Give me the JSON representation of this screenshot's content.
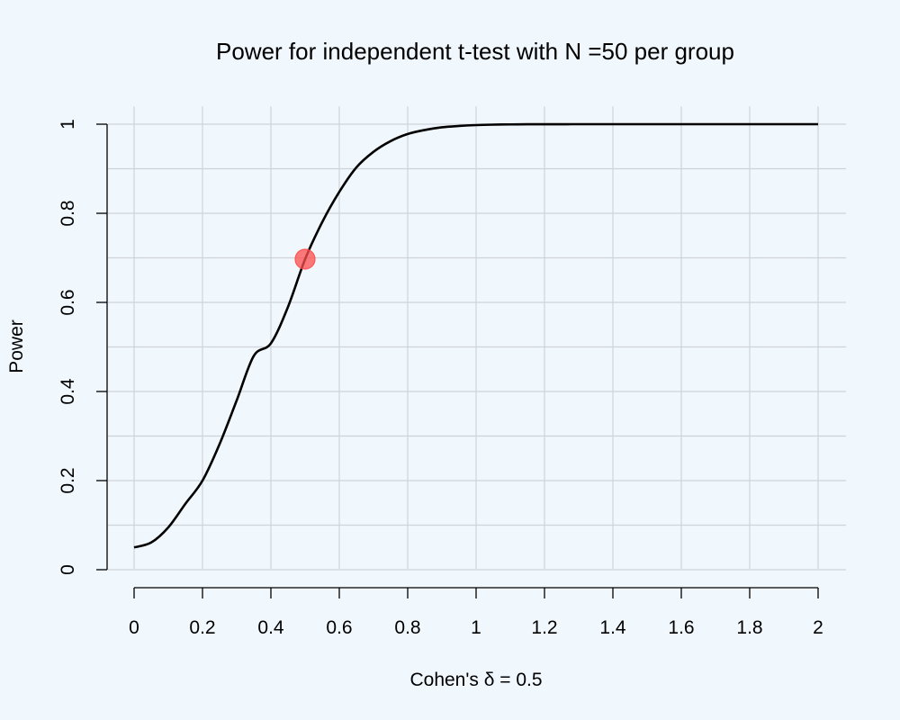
{
  "chart_data": {
    "type": "line",
    "title": "Power for independent t-test with N =50 per group",
    "xlabel": "Cohen's δ = 0.5",
    "ylabel": "Power",
    "xlim": [
      0,
      2
    ],
    "ylim": [
      0,
      1
    ],
    "x_ticks": [
      "0",
      "0.2",
      "0.4",
      "0.6",
      "0.8",
      "1",
      "1.2",
      "1.4",
      "1.6",
      "1.8",
      "2"
    ],
    "y_ticks": [
      "0",
      "0.2",
      "0.4",
      "0.6",
      "0.8",
      "1"
    ],
    "x_grid": [
      0,
      0.2,
      0.4,
      0.6,
      0.8,
      1,
      1.2,
      1.4,
      1.6,
      1.8,
      2
    ],
    "y_grid": [
      0,
      0.1,
      0.2,
      0.3,
      0.4,
      0.5,
      0.6,
      0.7,
      0.8,
      0.9,
      1
    ],
    "grid": true,
    "series": [
      {
        "color": "#000000",
        "x": [
          0,
          0.05,
          0.1,
          0.15,
          0.2,
          0.25,
          0.3,
          0.35,
          0.4,
          0.45,
          0.5,
          0.55,
          0.6,
          0.65,
          0.7,
          0.75,
          0.8,
          0.85,
          0.9,
          0.95,
          1,
          1.05,
          1.1,
          1.15,
          1.2,
          1.3,
          1.4,
          1.5,
          1.6,
          1.7,
          1.8,
          1.9,
          2
        ],
        "y": [
          0.05,
          0.061,
          0.095,
          0.148,
          0.2,
          0.282,
          0.38,
          0.48,
          0.508,
          0.59,
          0.697,
          0.78,
          0.848,
          0.903,
          0.938,
          0.962,
          0.978,
          0.987,
          0.993,
          0.996,
          0.998,
          0.999,
          0.9995,
          0.9998,
          0.9999,
          1,
          1,
          1,
          1,
          1,
          1,
          1,
          1
        ]
      }
    ],
    "highlight_point": {
      "x": 0.5,
      "y": 0.697,
      "color": "#ff4d4d"
    }
  }
}
